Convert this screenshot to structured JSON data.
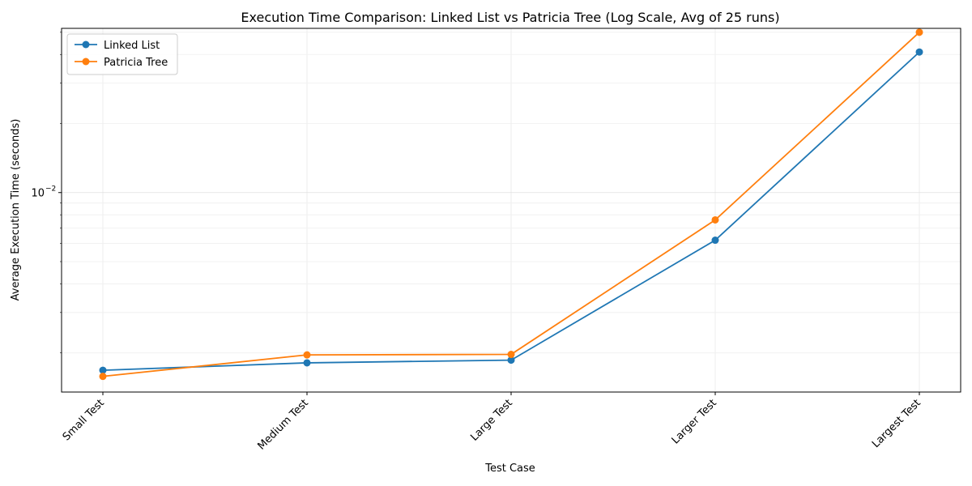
{
  "chart_data": {
    "type": "line",
    "title": "Execution Time Comparison: Linked List vs Patricia Tree (Log Scale, Avg of 25 runs)",
    "xlabel": "Test Case",
    "ylabel": "Average Execution Time (seconds)",
    "yscale": "log",
    "ylim": [
      0.00135,
      0.052
    ],
    "y_major_tick": {
      "value": 0.01,
      "label": "10",
      "exponent": "−2"
    },
    "grid": true,
    "legend_position": "top-left",
    "categories": [
      "Small Test",
      "Medium Test",
      "Large Test",
      "Larger Test",
      "Largest Test"
    ],
    "series": [
      {
        "name": "Linked List",
        "color": "#1f77b4",
        "values": [
          0.00168,
          0.00181,
          0.00186,
          0.0062,
          0.041
        ]
      },
      {
        "name": "Patricia Tree",
        "color": "#ff7f0e",
        "values": [
          0.00158,
          0.00196,
          0.00197,
          0.0076,
          0.05
        ]
      }
    ]
  }
}
